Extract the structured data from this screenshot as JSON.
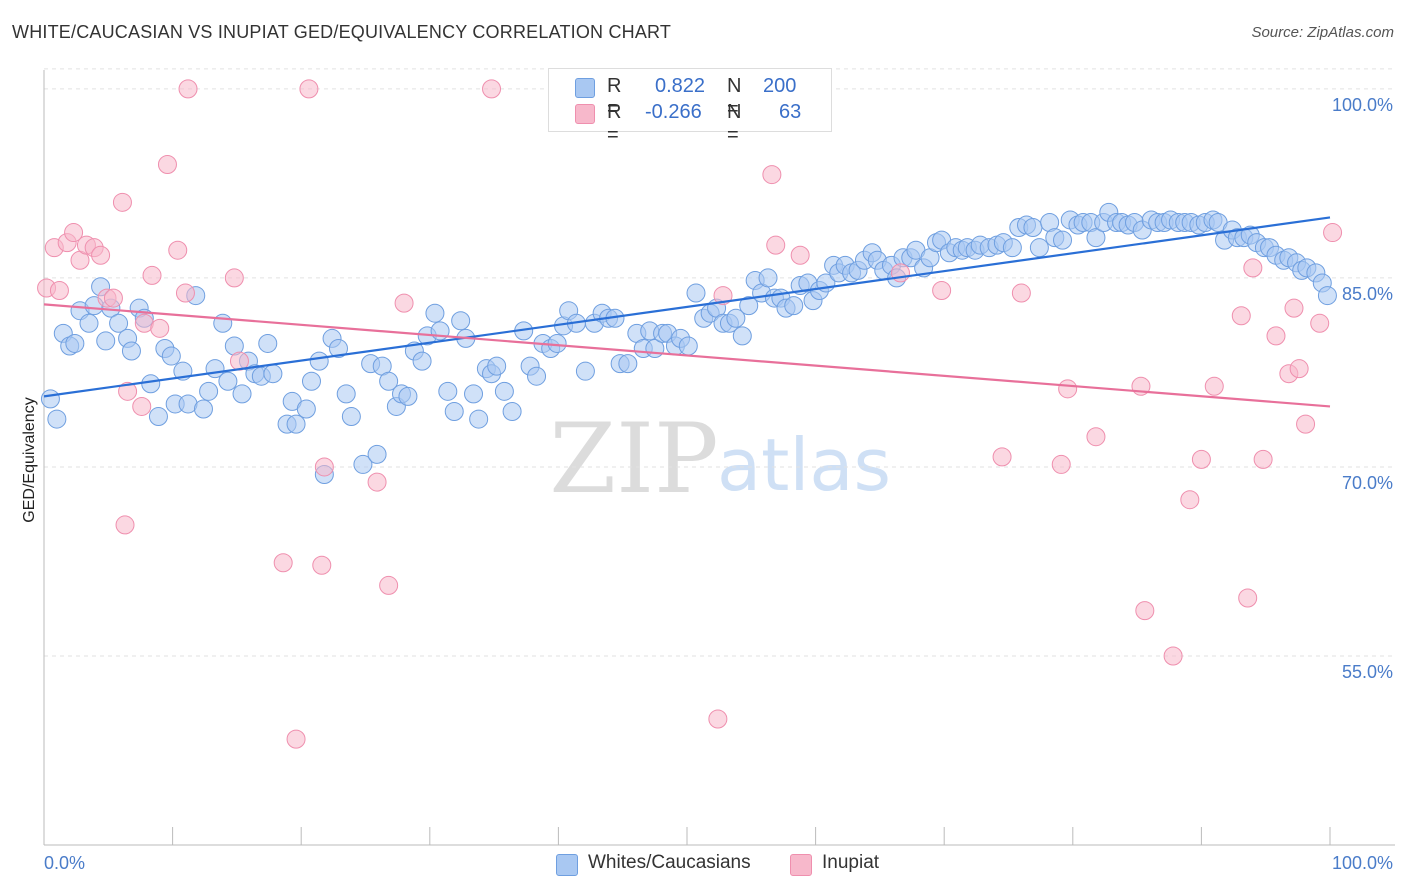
{
  "title": "WHITE/CAUCASIAN VS INUPIAT GED/EQUIVALENCY CORRELATION CHART",
  "source": "Source: ZipAtlas.com",
  "watermark": {
    "zip": "ZIP",
    "atlas": "atlas"
  },
  "legend_top": {
    "rows": [
      {
        "r_label": "R =",
        "r_value": "0.822",
        "n_label": "N =",
        "n_value": "200",
        "color": "#a9c8f2"
      },
      {
        "r_label": "R =",
        "r_value": "-0.266",
        "n_label": "N =",
        "n_value": "63",
        "color": "#f7b8cb"
      }
    ]
  },
  "legend_bottom": [
    "Whites/Caucasians",
    "Inupiat"
  ],
  "chart_data": {
    "type": "scatter",
    "title": "WHITE/CAUCASIAN VS INUPIAT GED/EQUIVALENCY CORRELATION CHART",
    "xlabel": "",
    "ylabel": "GED/Equivalency",
    "xlim": [
      0,
      100
    ],
    "ylim": [
      40,
      101.5
    ],
    "x_tick_labels": [
      "0.0%",
      "100.0%"
    ],
    "y_ticks": [
      55,
      70,
      85,
      100
    ],
    "y_tick_labels": [
      "55.0%",
      "70.0%",
      "85.0%",
      "100.0%"
    ],
    "grid": "horizontal dashed",
    "series": [
      {
        "name": "Whites/Caucasians",
        "color": "#a9c8f2",
        "stroke": "#6f9fe0",
        "line_color": "#2a6fd6",
        "trend": {
          "x": [
            0,
            100
          ],
          "y": [
            75.6,
            89.8
          ]
        },
        "points": [
          [
            0.5,
            75.4
          ],
          [
            1,
            73.8
          ],
          [
            1.5,
            80.6
          ],
          [
            2,
            79.6
          ],
          [
            2.4,
            79.8
          ],
          [
            2.8,
            82.4
          ],
          [
            3.5,
            81.4
          ],
          [
            3.9,
            82.8
          ],
          [
            4.4,
            84.3
          ],
          [
            4.8,
            80
          ],
          [
            5.2,
            82.6
          ],
          [
            5.8,
            81.4
          ],
          [
            6.5,
            80.2
          ],
          [
            6.8,
            79.2
          ],
          [
            7.4,
            82.6
          ],
          [
            7.8,
            81.8
          ],
          [
            8.3,
            76.6
          ],
          [
            8.9,
            74
          ],
          [
            9.4,
            79.4
          ],
          [
            9.9,
            78.8
          ],
          [
            10.2,
            75
          ],
          [
            10.8,
            77.6
          ],
          [
            11.2,
            75
          ],
          [
            11.8,
            83.6
          ],
          [
            12.4,
            74.6
          ],
          [
            12.8,
            76
          ],
          [
            13.3,
            77.8
          ],
          [
            13.9,
            81.4
          ],
          [
            14.3,
            76.8
          ],
          [
            14.8,
            79.6
          ],
          [
            15.4,
            75.8
          ],
          [
            15.9,
            78.4
          ],
          [
            16.4,
            77.4
          ],
          [
            16.9,
            77.2
          ],
          [
            17.4,
            79.8
          ],
          [
            17.8,
            77.4
          ],
          [
            18.9,
            73.4
          ],
          [
            19.3,
            75.2
          ],
          [
            19.6,
            73.4
          ],
          [
            20.4,
            74.6
          ],
          [
            20.8,
            76.8
          ],
          [
            21.4,
            78.4
          ],
          [
            21.8,
            69.4
          ],
          [
            22.4,
            80.2
          ],
          [
            22.9,
            79.4
          ],
          [
            23.5,
            75.8
          ],
          [
            23.9,
            74
          ],
          [
            24.8,
            70.2
          ],
          [
            25.4,
            78.2
          ],
          [
            25.9,
            71
          ],
          [
            26.3,
            78
          ],
          [
            26.8,
            76.8
          ],
          [
            27.4,
            74.8
          ],
          [
            27.8,
            75.8
          ],
          [
            28.3,
            75.6
          ],
          [
            28.8,
            79.2
          ],
          [
            29.4,
            78.4
          ],
          [
            29.8,
            80.4
          ],
          [
            30.4,
            82.2
          ],
          [
            30.8,
            80.8
          ],
          [
            31.4,
            76
          ],
          [
            31.9,
            74.4
          ],
          [
            32.4,
            81.6
          ],
          [
            32.8,
            80.2
          ],
          [
            33.4,
            75.8
          ],
          [
            33.8,
            73.8
          ],
          [
            34.4,
            77.8
          ],
          [
            34.8,
            77.4
          ],
          [
            35.2,
            78
          ],
          [
            35.8,
            76
          ],
          [
            36.4,
            74.4
          ],
          [
            37.3,
            80.8
          ],
          [
            37.8,
            78
          ],
          [
            38.3,
            77.2
          ],
          [
            38.8,
            79.8
          ],
          [
            39.4,
            79.4
          ],
          [
            39.9,
            79.8
          ],
          [
            40.4,
            81.2
          ],
          [
            40.8,
            82.4
          ],
          [
            41.4,
            81.4
          ],
          [
            42.1,
            77.6
          ],
          [
            42.8,
            81.4
          ],
          [
            43.4,
            82.2
          ],
          [
            43.9,
            81.8
          ],
          [
            44.4,
            81.8
          ],
          [
            44.8,
            78.2
          ],
          [
            45.4,
            78.2
          ],
          [
            46.1,
            80.6
          ],
          [
            46.6,
            79.4
          ],
          [
            47.1,
            80.8
          ],
          [
            47.5,
            79.4
          ],
          [
            48.1,
            80.6
          ],
          [
            48.5,
            80.6
          ],
          [
            49.1,
            79.6
          ],
          [
            49.5,
            80.2
          ],
          [
            50.1,
            79.6
          ],
          [
            50.7,
            83.8
          ],
          [
            51.3,
            81.8
          ],
          [
            51.8,
            82.2
          ],
          [
            52.3,
            82.6
          ],
          [
            52.8,
            81.4
          ],
          [
            53.3,
            81.4
          ],
          [
            53.8,
            81.8
          ],
          [
            54.3,
            80.4
          ],
          [
            54.8,
            82.8
          ],
          [
            55.3,
            84.8
          ],
          [
            55.8,
            83.8
          ],
          [
            56.3,
            85
          ],
          [
            56.8,
            83.4
          ],
          [
            57.3,
            83.4
          ],
          [
            57.7,
            82.6
          ],
          [
            58.3,
            82.8
          ],
          [
            58.8,
            84.4
          ],
          [
            59.4,
            84.6
          ],
          [
            59.8,
            83.2
          ],
          [
            60.3,
            84
          ],
          [
            60.8,
            84.6
          ],
          [
            61.4,
            86
          ],
          [
            61.8,
            85.4
          ],
          [
            62.3,
            86
          ],
          [
            62.8,
            85.4
          ],
          [
            63.3,
            85.6
          ],
          [
            63.8,
            86.4
          ],
          [
            64.4,
            87
          ],
          [
            64.8,
            86.4
          ],
          [
            65.3,
            85.6
          ],
          [
            65.9,
            86
          ],
          [
            66.3,
            85
          ],
          [
            66.8,
            86.6
          ],
          [
            67.4,
            86.6
          ],
          [
            67.8,
            87.2
          ],
          [
            68.4,
            85.8
          ],
          [
            68.9,
            86.6
          ],
          [
            69.4,
            87.8
          ],
          [
            69.8,
            88
          ],
          [
            70.4,
            87
          ],
          [
            70.9,
            87.4
          ],
          [
            71.4,
            87.2
          ],
          [
            71.8,
            87.4
          ],
          [
            72.4,
            87.2
          ],
          [
            72.8,
            87.6
          ],
          [
            73.5,
            87.4
          ],
          [
            74.1,
            87.6
          ],
          [
            74.6,
            87.8
          ],
          [
            75.3,
            87.4
          ],
          [
            75.8,
            89
          ],
          [
            76.4,
            89.2
          ],
          [
            76.9,
            89
          ],
          [
            77.4,
            87.4
          ],
          [
            78.2,
            89.4
          ],
          [
            78.6,
            88.2
          ],
          [
            79.2,
            88
          ],
          [
            79.8,
            89.6
          ],
          [
            80.4,
            89.2
          ],
          [
            80.8,
            89.4
          ],
          [
            81.4,
            89.4
          ],
          [
            81.8,
            88.2
          ],
          [
            82.4,
            89.4
          ],
          [
            82.8,
            90.2
          ],
          [
            83.4,
            89.4
          ],
          [
            83.8,
            89.4
          ],
          [
            84.3,
            89.2
          ],
          [
            84.8,
            89.4
          ],
          [
            85.4,
            88.8
          ],
          [
            86.1,
            89.6
          ],
          [
            86.6,
            89.4
          ],
          [
            87.1,
            89.4
          ],
          [
            87.6,
            89.6
          ],
          [
            88.2,
            89.4
          ],
          [
            88.7,
            89.4
          ],
          [
            89.2,
            89.4
          ],
          [
            89.8,
            89.2
          ],
          [
            90.3,
            89.4
          ],
          [
            90.9,
            89.6
          ],
          [
            91.3,
            89.4
          ],
          [
            91.8,
            88
          ],
          [
            92.4,
            88.8
          ],
          [
            92.8,
            88.2
          ],
          [
            93.3,
            88.2
          ],
          [
            93.8,
            88.4
          ],
          [
            94.3,
            87.8
          ],
          [
            94.9,
            87.4
          ],
          [
            95.3,
            87.4
          ],
          [
            95.8,
            86.8
          ],
          [
            96.4,
            86.4
          ],
          [
            96.8,
            86.6
          ],
          [
            97.4,
            86.2
          ],
          [
            97.8,
            85.6
          ],
          [
            98.2,
            85.8
          ],
          [
            98.9,
            85.4
          ],
          [
            99.4,
            84.6
          ],
          [
            99.8,
            83.6
          ]
        ]
      },
      {
        "name": "Inupiat",
        "color": "#f7b8cb",
        "stroke": "#ef8fae",
        "line_color": "#e8709a",
        "trend": {
          "x": [
            0,
            100
          ],
          "y": [
            82.9,
            74.8
          ]
        },
        "points": [
          [
            0.2,
            84.2
          ],
          [
            0.8,
            87.4
          ],
          [
            1.2,
            84
          ],
          [
            1.8,
            87.8
          ],
          [
            2.3,
            88.6
          ],
          [
            2.8,
            86.4
          ],
          [
            3.3,
            87.6
          ],
          [
            3.9,
            87.4
          ],
          [
            4.4,
            86.8
          ],
          [
            4.9,
            83.4
          ],
          [
            5.4,
            83.4
          ],
          [
            6.1,
            91
          ],
          [
            6.3,
            65.4
          ],
          [
            6.5,
            76
          ],
          [
            7.6,
            74.8
          ],
          [
            7.8,
            81.4
          ],
          [
            8.4,
            85.2
          ],
          [
            9,
            81
          ],
          [
            9.6,
            94
          ],
          [
            10.4,
            87.2
          ],
          [
            11,
            83.8
          ],
          [
            11.2,
            100
          ],
          [
            14.8,
            85
          ],
          [
            15.2,
            78.4
          ],
          [
            18.6,
            62.4
          ],
          [
            19.6,
            48.4
          ],
          [
            20.6,
            100
          ],
          [
            21.8,
            70
          ],
          [
            21.6,
            62.2
          ],
          [
            25.9,
            68.8
          ],
          [
            26.8,
            60.6
          ],
          [
            28,
            83
          ],
          [
            34.8,
            100
          ],
          [
            52.4,
            50
          ],
          [
            52.8,
            83.6
          ],
          [
            56.6,
            93.2
          ],
          [
            56.9,
            87.6
          ],
          [
            58.8,
            86.8
          ],
          [
            66.6,
            85.4
          ],
          [
            69.8,
            84
          ],
          [
            74.5,
            70.8
          ],
          [
            76,
            83.8
          ],
          [
            79.1,
            70.2
          ],
          [
            79.6,
            76.2
          ],
          [
            81.8,
            72.4
          ],
          [
            85.3,
            76.4
          ],
          [
            85.6,
            58.6
          ],
          [
            87.8,
            55
          ],
          [
            89.1,
            67.4
          ],
          [
            90,
            70.6
          ],
          [
            91,
            76.4
          ],
          [
            93.1,
            82
          ],
          [
            93.6,
            59.6
          ],
          [
            94,
            85.8
          ],
          [
            94.8,
            70.6
          ],
          [
            95.8,
            80.4
          ],
          [
            96.8,
            77.4
          ],
          [
            97.2,
            82.6
          ],
          [
            97.6,
            77.8
          ],
          [
            98.1,
            73.4
          ],
          [
            99.2,
            81.4
          ],
          [
            100.2,
            88.6
          ]
        ]
      }
    ]
  }
}
